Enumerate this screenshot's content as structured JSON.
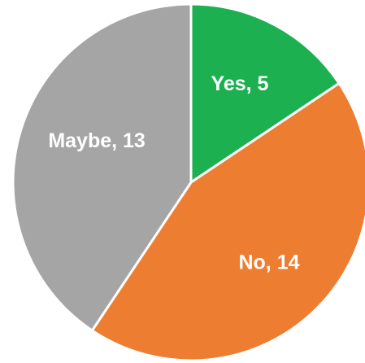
{
  "chart_data": {
    "type": "pie",
    "slices": [
      {
        "category": "Yes",
        "value": 5,
        "label": "Yes, 5",
        "color": "#1DB050"
      },
      {
        "category": "No",
        "value": 14,
        "label": "No, 14",
        "color": "#ED7D31"
      },
      {
        "category": "Maybe",
        "value": 13,
        "label": "Maybe, 13",
        "color": "#A5A5A5"
      }
    ],
    "start_angle_deg": 0,
    "direction": "clockwise"
  }
}
